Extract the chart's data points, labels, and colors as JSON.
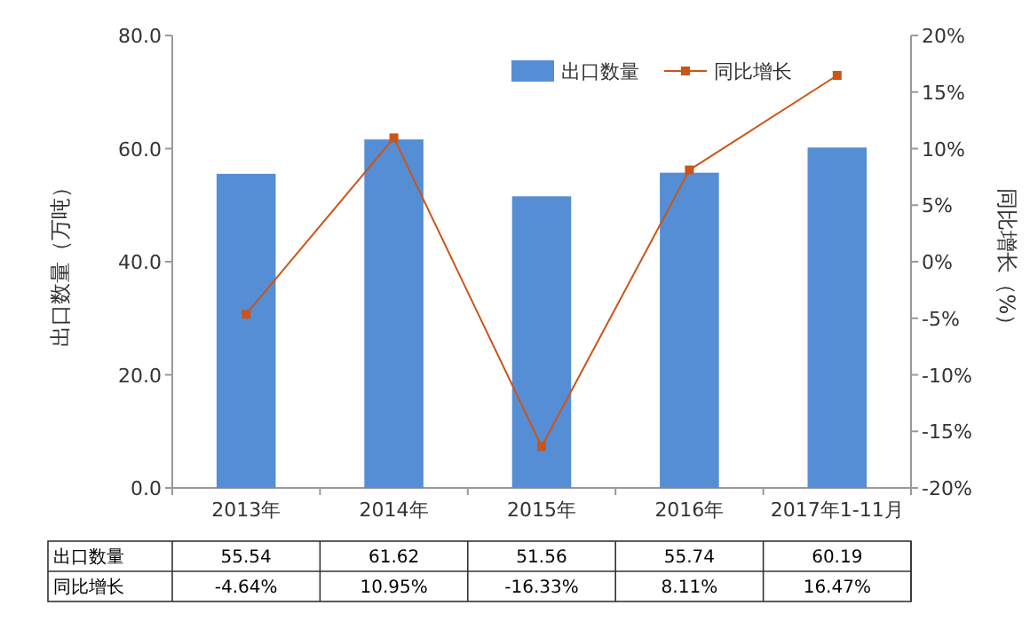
{
  "chart_data": {
    "type": "bar",
    "categories": [
      "2013年",
      "2014年",
      "2015年",
      "2016年",
      "2017年1-11月"
    ],
    "series": [
      {
        "name": "出口数量",
        "color": "#558ed5",
        "values": [
          55.54,
          61.62,
          51.56,
          55.74,
          60.19
        ],
        "value_labels": [
          "55.54",
          "61.62",
          "51.56",
          "55.74",
          "60.19"
        ]
      },
      {
        "name": "同比增长",
        "type": "line",
        "axis": "y2",
        "color": "#cc5418",
        "marker": "square",
        "values": [
          -4.64,
          10.95,
          -16.33,
          8.11,
          16.47
        ],
        "value_labels": [
          "-4.64%",
          "10.95%",
          "-16.33%",
          "8.11%",
          "16.47%"
        ]
      }
    ],
    "ylabel": "出口数量（万吨）",
    "y2label": "同比增长（%）",
    "ylim": [
      0,
      80
    ],
    "yticks": [
      {
        "value": 0,
        "label": "0.0"
      },
      {
        "value": 20,
        "label": "20.0"
      },
      {
        "value": 40,
        "label": "40.0"
      },
      {
        "value": 60,
        "label": "60.0"
      },
      {
        "value": 80,
        "label": "80.0"
      }
    ],
    "y2lim": [
      -20,
      20
    ],
    "y2ticks": [
      {
        "value": -20,
        "label": "-20%"
      },
      {
        "value": -15,
        "label": "-15%"
      },
      {
        "value": -10,
        "label": "-10%"
      },
      {
        "value": -5,
        "label": "-5%"
      },
      {
        "value": 0,
        "label": "0%"
      },
      {
        "value": 5,
        "label": "5%"
      },
      {
        "value": 10,
        "label": "10%"
      },
      {
        "value": 15,
        "label": "15%"
      },
      {
        "value": 20,
        "label": "20%"
      }
    ],
    "legend": "top right"
  }
}
